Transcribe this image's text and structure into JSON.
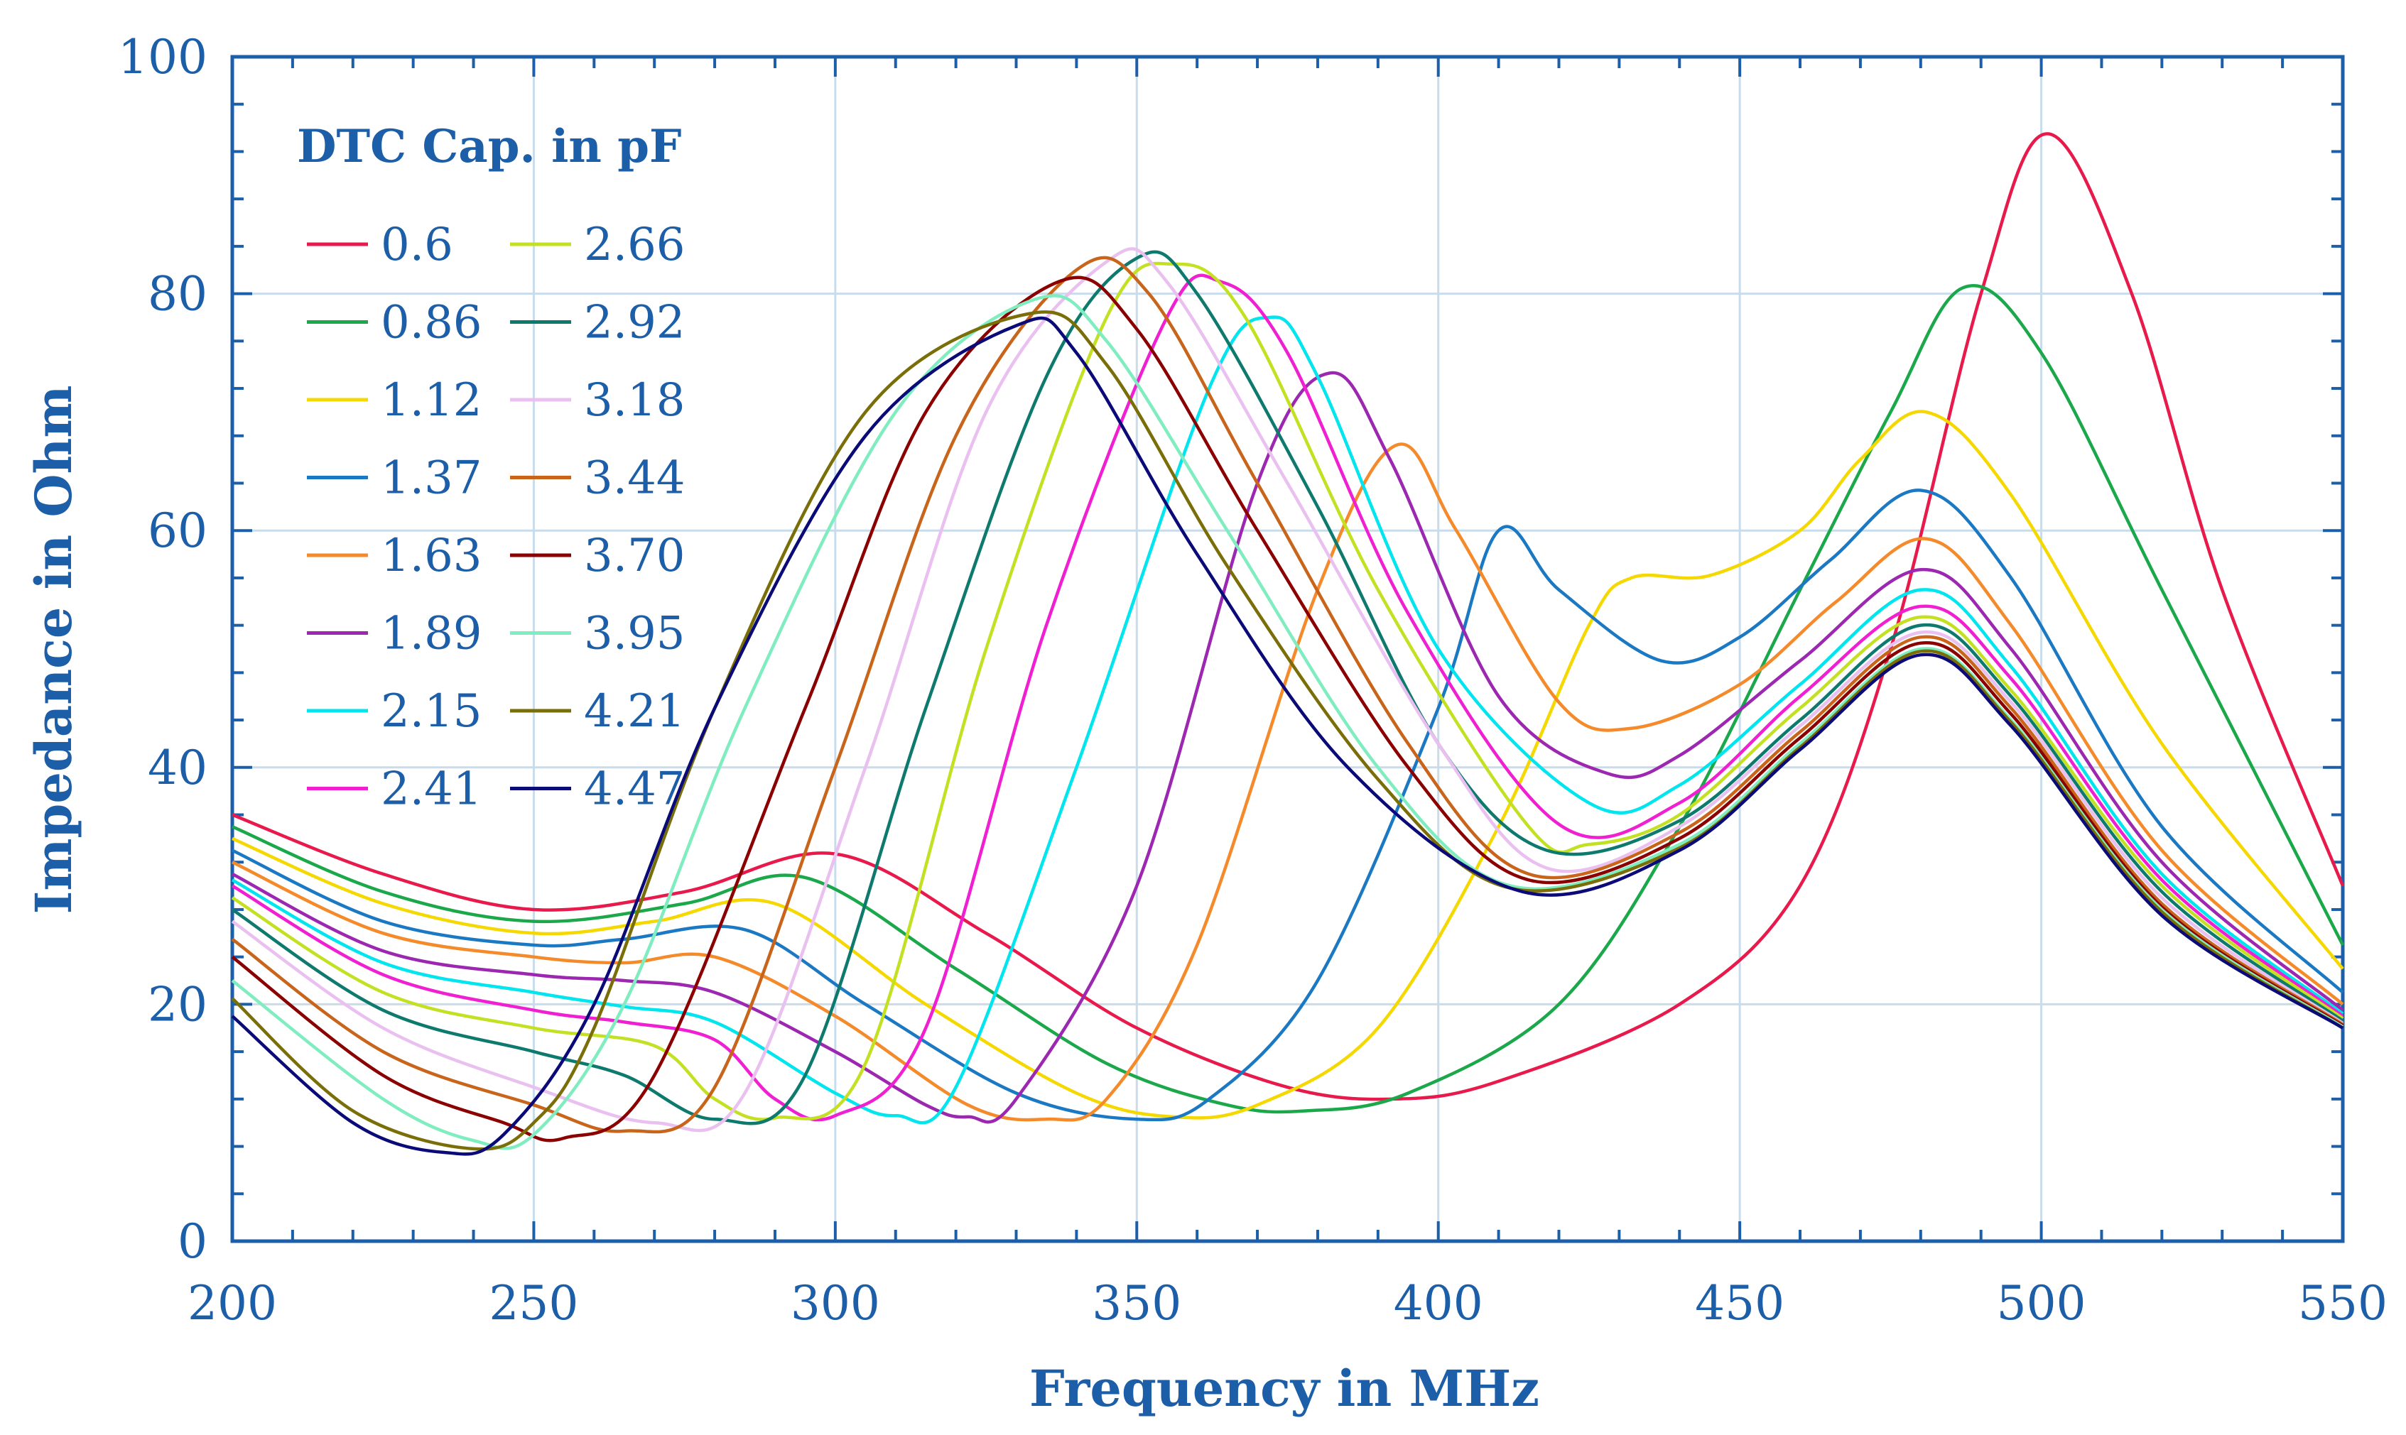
{
  "chart_data": {
    "type": "line",
    "title": "",
    "xlabel": "Frequency in MHz",
    "ylabel": "Impedance in Ohm",
    "xlim": [
      200,
      550
    ],
    "ylim": [
      0,
      100
    ],
    "xticks": [
      200,
      250,
      300,
      350,
      400,
      450,
      500,
      550
    ],
    "yticks": [
      0,
      20,
      40,
      60,
      80,
      100
    ],
    "grid": true,
    "legend_title": "DTC Cap. in pF",
    "legend_position": "top-left",
    "series": [
      {
        "name": "0.6",
        "color": "#e8194b",
        "points": [
          [
            200,
            36
          ],
          [
            225,
            31
          ],
          [
            250,
            28
          ],
          [
            275,
            29.5
          ],
          [
            300,
            32.7
          ],
          [
            325,
            26
          ],
          [
            350,
            18
          ],
          [
            375,
            13
          ],
          [
            393,
            12
          ],
          [
            410,
            13.5
          ],
          [
            440,
            20
          ],
          [
            460,
            30
          ],
          [
            475,
            50
          ],
          [
            490,
            80
          ],
          [
            501,
            93.5
          ],
          [
            515,
            80
          ],
          [
            530,
            55
          ],
          [
            550,
            30
          ]
        ]
      },
      {
        "name": "0.86",
        "color": "#1aa84a",
        "points": [
          [
            200,
            35
          ],
          [
            225,
            29.5
          ],
          [
            250,
            27
          ],
          [
            275,
            28.5
          ],
          [
            295,
            30.7
          ],
          [
            320,
            23
          ],
          [
            345,
            15
          ],
          [
            365,
            11.5
          ],
          [
            378,
            11
          ],
          [
            395,
            12.5
          ],
          [
            420,
            20
          ],
          [
            440,
            35
          ],
          [
            460,
            55
          ],
          [
            475,
            70
          ],
          [
            487,
            80.5
          ],
          [
            500,
            75
          ],
          [
            520,
            55
          ],
          [
            550,
            25
          ]
        ]
      },
      {
        "name": "1.12",
        "color": "#f5d800",
        "points": [
          [
            200,
            34
          ],
          [
            225,
            28.5
          ],
          [
            250,
            26
          ],
          [
            270,
            27
          ],
          [
            290,
            28.5
          ],
          [
            315,
            20
          ],
          [
            340,
            12.5
          ],
          [
            356,
            10.5
          ],
          [
            370,
            11.5
          ],
          [
            390,
            18
          ],
          [
            410,
            35
          ],
          [
            425,
            52
          ],
          [
            432,
            56
          ],
          [
            445,
            56.2
          ],
          [
            460,
            60
          ],
          [
            470,
            66
          ],
          [
            481,
            70
          ],
          [
            495,
            63
          ],
          [
            520,
            42
          ],
          [
            550,
            23
          ]
        ]
      },
      {
        "name": "1.37",
        "color": "#1b79c4",
        "points": [
          [
            200,
            33
          ],
          [
            225,
            27
          ],
          [
            250,
            25
          ],
          [
            265,
            25.5
          ],
          [
            285,
            26.3
          ],
          [
            305,
            20
          ],
          [
            330,
            12.5
          ],
          [
            350,
            10.3
          ],
          [
            362,
            12
          ],
          [
            380,
            22
          ],
          [
            400,
            45
          ],
          [
            410,
            60
          ],
          [
            420,
            55
          ],
          [
            437,
            49
          ],
          [
            450,
            51
          ],
          [
            465,
            57.5
          ],
          [
            480,
            63.4
          ],
          [
            495,
            56
          ],
          [
            520,
            35
          ],
          [
            550,
            21
          ]
        ]
      },
      {
        "name": "1.63",
        "color": "#f58a2b",
        "points": [
          [
            200,
            32
          ],
          [
            225,
            26
          ],
          [
            250,
            24
          ],
          [
            265,
            23.5
          ],
          [
            280,
            24
          ],
          [
            300,
            19
          ],
          [
            322,
            11.5
          ],
          [
            335,
            10.3
          ],
          [
            345,
            12
          ],
          [
            360,
            25
          ],
          [
            380,
            55
          ],
          [
            393,
            67.2
          ],
          [
            403,
            60
          ],
          [
            420,
            45.5
          ],
          [
            432,
            43.3
          ],
          [
            450,
            47
          ],
          [
            466,
            54
          ],
          [
            481,
            59.3
          ],
          [
            495,
            52
          ],
          [
            520,
            33
          ],
          [
            550,
            20
          ]
        ]
      },
      {
        "name": "1.89",
        "color": "#9c27b0",
        "points": [
          [
            200,
            31
          ],
          [
            225,
            24.5
          ],
          [
            250,
            22.5
          ],
          [
            265,
            22
          ],
          [
            280,
            21
          ],
          [
            300,
            16
          ],
          [
            315,
            11.5
          ],
          [
            322,
            10.5
          ],
          [
            330,
            12
          ],
          [
            350,
            30
          ],
          [
            370,
            64
          ],
          [
            382,
            73.3
          ],
          [
            392,
            66
          ],
          [
            410,
            46
          ],
          [
            428,
            39.5
          ],
          [
            440,
            41
          ],
          [
            460,
            49
          ],
          [
            480,
            56.7
          ],
          [
            495,
            50
          ],
          [
            520,
            32
          ],
          [
            550,
            19.5
          ]
        ]
      },
      {
        "name": "2.15",
        "color": "#00e5ee",
        "points": [
          [
            200,
            30.5
          ],
          [
            225,
            23.5
          ],
          [
            250,
            21
          ],
          [
            265,
            19.8
          ],
          [
            280,
            18.5
          ],
          [
            300,
            12.5
          ],
          [
            310,
            10.6
          ],
          [
            320,
            13
          ],
          [
            340,
            40
          ],
          [
            362,
            72
          ],
          [
            372,
            78
          ],
          [
            380,
            73
          ],
          [
            400,
            50
          ],
          [
            425,
            37
          ],
          [
            440,
            38.5
          ],
          [
            460,
            47
          ],
          [
            480,
            55
          ],
          [
            495,
            48.5
          ],
          [
            520,
            31
          ],
          [
            550,
            19.2
          ]
        ]
      },
      {
        "name": "2.41",
        "color": "#f020d2",
        "points": [
          [
            200,
            30
          ],
          [
            225,
            22.5
          ],
          [
            250,
            19.5
          ],
          [
            265,
            18.5
          ],
          [
            280,
            17
          ],
          [
            290,
            12
          ],
          [
            300,
            10.6
          ],
          [
            315,
            18
          ],
          [
            335,
            52
          ],
          [
            355,
            78
          ],
          [
            364,
            81
          ],
          [
            375,
            75
          ],
          [
            395,
            53
          ],
          [
            420,
            35.2
          ],
          [
            440,
            37
          ],
          [
            460,
            46
          ],
          [
            480,
            53.6
          ],
          [
            495,
            47.5
          ],
          [
            520,
            30.5
          ],
          [
            550,
            19
          ]
        ]
      },
      {
        "name": "2.66",
        "color": "#c4e022",
        "points": [
          [
            200,
            29
          ],
          [
            225,
            21
          ],
          [
            250,
            18
          ],
          [
            270,
            16.5
          ],
          [
            280,
            12
          ],
          [
            290,
            10.4
          ],
          [
            305,
            15
          ],
          [
            325,
            50
          ],
          [
            345,
            78
          ],
          [
            356,
            82.5
          ],
          [
            368,
            78
          ],
          [
            390,
            55
          ],
          [
            415,
            35
          ],
          [
            425,
            33.5
          ],
          [
            440,
            36
          ],
          [
            460,
            45
          ],
          [
            480,
            52.7
          ],
          [
            495,
            46.5
          ],
          [
            520,
            30
          ],
          [
            550,
            18.8
          ]
        ]
      },
      {
        "name": "2.92",
        "color": "#0e7a6e",
        "points": [
          [
            200,
            28
          ],
          [
            225,
            19.5
          ],
          [
            250,
            16
          ],
          [
            265,
            14
          ],
          [
            280,
            10.3
          ],
          [
            295,
            14
          ],
          [
            315,
            45
          ],
          [
            335,
            73
          ],
          [
            350,
            83
          ],
          [
            360,
            80
          ],
          [
            380,
            62
          ],
          [
            400,
            42
          ],
          [
            418,
            33
          ],
          [
            440,
            35.5
          ],
          [
            460,
            44
          ],
          [
            480,
            52
          ],
          [
            495,
            46
          ],
          [
            520,
            29.5
          ],
          [
            550,
            18.6
          ]
        ]
      },
      {
        "name": "3.18",
        "color": "#e9c0ef",
        "points": [
          [
            200,
            27
          ],
          [
            225,
            18
          ],
          [
            250,
            13
          ],
          [
            270,
            10
          ],
          [
            285,
            12.5
          ],
          [
            305,
            40
          ],
          [
            325,
            70
          ],
          [
            345,
            82.7
          ],
          [
            355,
            81
          ],
          [
            375,
            64
          ],
          [
            400,
            42
          ],
          [
            418,
            31.5
          ],
          [
            440,
            35
          ],
          [
            460,
            43.5
          ],
          [
            480,
            51.4
          ],
          [
            495,
            45.5
          ],
          [
            520,
            29
          ],
          [
            550,
            18.4
          ]
        ]
      },
      {
        "name": "3.44",
        "color": "#c8651b",
        "points": [
          [
            200,
            25.5
          ],
          [
            225,
            16
          ],
          [
            250,
            11.5
          ],
          [
            265,
            9.3
          ],
          [
            280,
            13
          ],
          [
            300,
            40
          ],
          [
            320,
            68
          ],
          [
            340,
            82
          ],
          [
            352,
            80
          ],
          [
            370,
            64
          ],
          [
            395,
            42
          ],
          [
            415,
            31
          ],
          [
            440,
            34.5
          ],
          [
            460,
            43
          ],
          [
            480,
            51
          ],
          [
            495,
            45
          ],
          [
            520,
            28.5
          ],
          [
            550,
            18.3
          ]
        ]
      },
      {
        "name": "3.70",
        "color": "#8b0000",
        "points": [
          [
            200,
            24
          ],
          [
            225,
            14
          ],
          [
            245,
            10
          ],
          [
            255,
            8.7
          ],
          [
            270,
            14
          ],
          [
            295,
            45
          ],
          [
            315,
            70
          ],
          [
            337,
            81
          ],
          [
            350,
            77
          ],
          [
            370,
            60
          ],
          [
            395,
            40
          ],
          [
            415,
            30.5
          ],
          [
            440,
            34
          ],
          [
            460,
            42.5
          ],
          [
            480,
            50.5
          ],
          [
            495,
            44.5
          ],
          [
            520,
            28.2
          ],
          [
            550,
            18.2
          ]
        ]
      },
      {
        "name": "3.95",
        "color": "#7fedc0",
        "points": [
          [
            200,
            22
          ],
          [
            225,
            12
          ],
          [
            240,
            8.5
          ],
          [
            250,
            9
          ],
          [
            265,
            20
          ],
          [
            285,
            45
          ],
          [
            310,
            70
          ],
          [
            333,
            79.5
          ],
          [
            345,
            76
          ],
          [
            365,
            60
          ],
          [
            390,
            40
          ],
          [
            412,
            30
          ],
          [
            440,
            33.5
          ],
          [
            460,
            42
          ],
          [
            480,
            50
          ],
          [
            495,
            44
          ],
          [
            520,
            28
          ],
          [
            550,
            18.1
          ]
        ]
      },
      {
        "name": "4.21",
        "color": "#7a6e08",
        "points": [
          [
            200,
            20.5
          ],
          [
            220,
            11
          ],
          [
            240,
            7.8
          ],
          [
            250,
            10
          ],
          [
            260,
            18
          ],
          [
            280,
            45
          ],
          [
            305,
            70
          ],
          [
            332,
            78.3
          ],
          [
            345,
            74
          ],
          [
            365,
            57
          ],
          [
            390,
            39
          ],
          [
            412,
            29.8
          ],
          [
            440,
            33.2
          ],
          [
            460,
            41.7
          ],
          [
            480,
            49.8
          ],
          [
            495,
            43.8
          ],
          [
            520,
            27.8
          ],
          [
            550,
            18
          ]
        ]
      },
      {
        "name": "4.47",
        "color": "#0a0a78",
        "points": [
          [
            200,
            19
          ],
          [
            220,
            10
          ],
          [
            235,
            7.5
          ],
          [
            245,
            9
          ],
          [
            260,
            20
          ],
          [
            280,
            45
          ],
          [
            305,
            68
          ],
          [
            330,
            77.3
          ],
          [
            340,
            75
          ],
          [
            360,
            58
          ],
          [
            385,
            40
          ],
          [
            414,
            29.5
          ],
          [
            440,
            33
          ],
          [
            460,
            41.5
          ],
          [
            480,
            49.5
          ],
          [
            495,
            43.5
          ],
          [
            520,
            27.5
          ],
          [
            550,
            18
          ]
        ]
      }
    ]
  }
}
